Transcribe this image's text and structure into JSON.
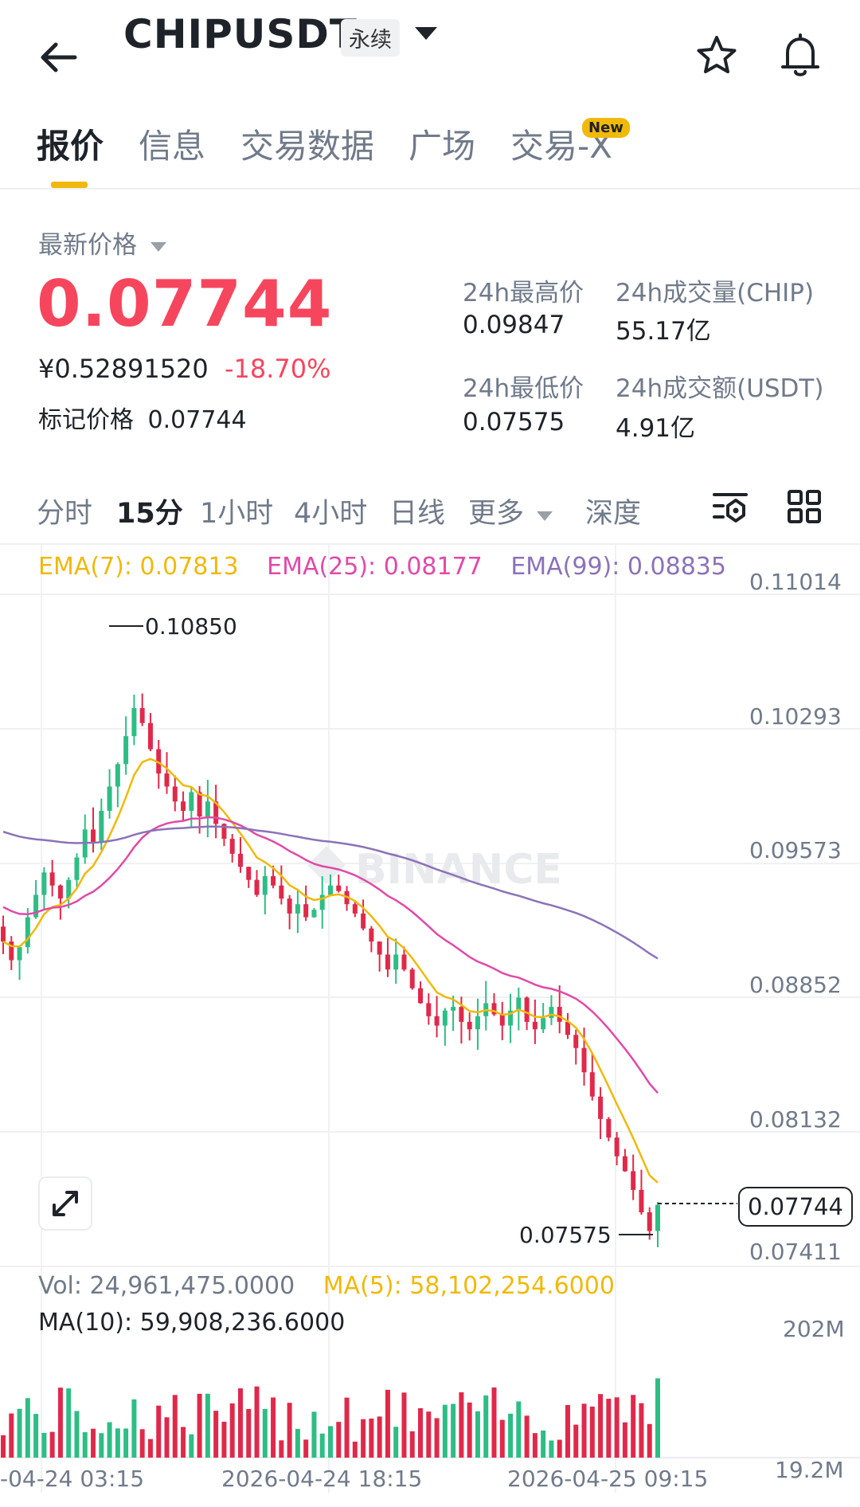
{
  "header": {
    "symbol": "CHIPUSDT",
    "contract_type": "永续"
  },
  "tabs": [
    {
      "label": "报价",
      "active": true
    },
    {
      "label": "信息"
    },
    {
      "label": "交易数据"
    },
    {
      "label": "广场"
    },
    {
      "label": "交易-X",
      "badge": "New"
    }
  ],
  "price": {
    "latest_label": "最新价格",
    "last": "0.07744",
    "cny": "¥0.52891520",
    "change": "-18.70%",
    "mark_label": "标记价格",
    "mark": "0.07744"
  },
  "stats": {
    "high_label": "24h最高价",
    "high": "0.09847",
    "vol_label": "24h成交量(CHIP)",
    "vol": "55.17亿",
    "low_label": "24h最低价",
    "low": "0.07575",
    "amount_label": "24h成交额(USDT)",
    "amount": "4.91亿"
  },
  "intervals": [
    {
      "label": "分时"
    },
    {
      "label": "15分",
      "active": true
    },
    {
      "label": "1小时"
    },
    {
      "label": "4小时"
    },
    {
      "label": "日线"
    },
    {
      "label": "更多"
    },
    {
      "label": "深度"
    }
  ],
  "chart_legend": {
    "ema7": "EMA(7): 0.07813",
    "ema25": "EMA(25): 0.08177",
    "ema99": "EMA(99): 0.08835"
  },
  "colors": {
    "up": "#2ebd85",
    "down": "#e0294a",
    "ema7": "#f0b90b",
    "ema25": "#e04aa8",
    "ema99": "#8c72b8",
    "accent": "#f0b90b",
    "price_red": "#f6465d"
  },
  "watermark": "BINANCE",
  "price_axis": [
    "0.11014",
    "0.10293",
    "0.09573",
    "0.08852",
    "0.08132",
    "0.07411"
  ],
  "high_marker": "0.10850",
  "low_marker": "0.07575",
  "current_price_tag": "0.07744",
  "volume": {
    "vol": "Vol: 24,961,475.0000",
    "ma5": "MA(5): 58,102,254.6000",
    "ma10": "MA(10): 59,908,236.6000",
    "axis": [
      "202M",
      "19.2M"
    ]
  },
  "time_axis": [
    "-04-24 03:15",
    "2026-04-24 18:15",
    "2026-04-25 09:15"
  ],
  "chart_data": {
    "type": "candlestick",
    "interval": "15m",
    "y_range": [
      0.0741,
      0.1101
    ],
    "volume_range": [
      0,
      202000000
    ],
    "high": 0.1085,
    "low": 0.07575,
    "last": 0.07744,
    "closes": [
      0.0915,
      0.0905,
      0.0912,
      0.0928,
      0.094,
      0.0952,
      0.0945,
      0.0938,
      0.0948,
      0.096,
      0.0975,
      0.0968,
      0.0985,
      0.0998,
      0.101,
      0.1025,
      0.104,
      0.1032,
      0.1018,
      0.1005,
      0.0998,
      0.099,
      0.0985,
      0.0995,
      0.0982,
      0.099,
      0.0978,
      0.097,
      0.0962,
      0.0955,
      0.0948,
      0.094,
      0.095,
      0.0945,
      0.0938,
      0.093,
      0.0935,
      0.0928,
      0.0932,
      0.094,
      0.0945,
      0.0942,
      0.0935,
      0.093,
      0.0922,
      0.0915,
      0.0908,
      0.09,
      0.0908,
      0.09,
      0.089,
      0.0882,
      0.0875,
      0.087,
      0.0878,
      0.088,
      0.0872,
      0.0868,
      0.0875,
      0.0882,
      0.0876,
      0.087,
      0.0878,
      0.0885,
      0.0872,
      0.0868,
      0.0874,
      0.088,
      0.0872,
      0.0865,
      0.0858,
      0.0845,
      0.0832,
      0.082,
      0.081,
      0.08,
      0.0792,
      0.0782,
      0.077,
      0.076,
      0.0774
    ]
  }
}
